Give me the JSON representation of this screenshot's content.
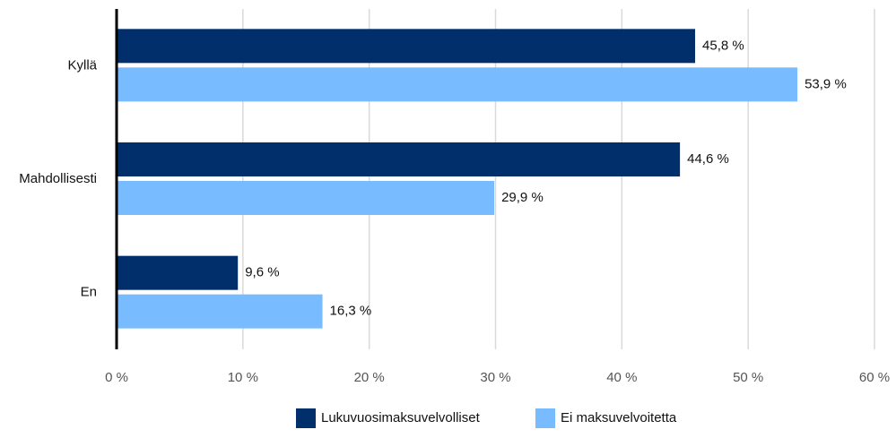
{
  "chart_data": {
    "type": "hbar",
    "categories": [
      "Kyllä",
      "Mahdollisesti",
      "En"
    ],
    "series": [
      {
        "name": "Lukuvuosimaksuvelvolliset",
        "color": "#002f6c",
        "values": [
          45.8,
          44.6,
          9.6
        ],
        "value_labels": [
          "45,8 %",
          "44,6 %",
          "9,6 %"
        ]
      },
      {
        "name": "Ei maksuvelvoitetta",
        "color": "#78bcff",
        "values": [
          53.9,
          29.9,
          16.3
        ],
        "value_labels": [
          "53,9 %",
          "29,9 %",
          "16,3 %"
        ]
      }
    ],
    "xlim": [
      0,
      60
    ],
    "xticks": [
      {
        "value": 0,
        "label": "0 %"
      },
      {
        "value": 10,
        "label": "10 %"
      },
      {
        "value": 20,
        "label": "20 %"
      },
      {
        "value": 30,
        "label": "30 %"
      },
      {
        "value": 40,
        "label": "40 %"
      },
      {
        "value": 50,
        "label": "50 %"
      },
      {
        "value": 60,
        "label": "60 %"
      }
    ],
    "grid": true,
    "legend": "bottom"
  }
}
